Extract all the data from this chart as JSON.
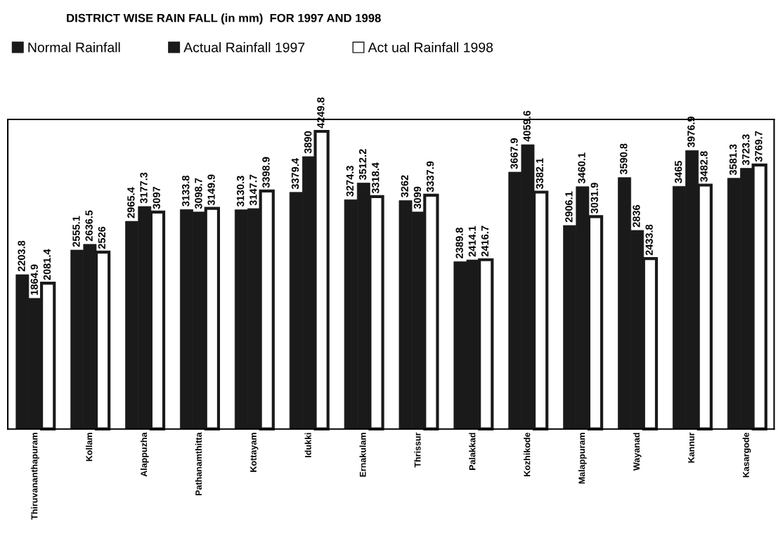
{
  "chart_data": {
    "type": "bar",
    "title": "DISTRICT WISE RAIN FALL (in mm)  FOR 1997 AND 1998",
    "categories": [
      "Thiruvananthapuram",
      "Kollam",
      "Alappuzha",
      "Pathanamthitta",
      "Kottayam",
      "Idukki",
      "Ernakulam",
      "Thrissur",
      "Palakkad",
      "Kozhikode",
      "Malappuram",
      "Wayanad",
      "Kannur",
      "Kasargode"
    ],
    "series": [
      {
        "name": "Normal Rainfall",
        "color": "#1a1a1a",
        "values": [
          2203.8,
          2555.1,
          2965.4,
          3133.8,
          3130.3,
          3379.4,
          3274.3,
          3262,
          2389.8,
          3667.9,
          2906.1,
          3590.8,
          3465,
          3581.3
        ]
      },
      {
        "name": "Actual Rainfall 1997",
        "color": "#1a1a1a",
        "values": [
          1864.9,
          2636.5,
          3177.3,
          3098.7,
          3147.7,
          3890,
          3512.2,
          3099,
          2414.1,
          4059.6,
          3460.1,
          2836,
          3976.9,
          3723.3
        ]
      },
      {
        "name": "Act ual Rainfall 1998",
        "color": "#ffffff",
        "values": [
          2081.4,
          2526,
          3097,
          3149.9,
          3398.9,
          4249.8,
          3318.4,
          3337.9,
          2416.7,
          3382.1,
          3031.9,
          2433.8,
          3482.8,
          3769.7
        ]
      }
    ],
    "data_labels": true,
    "legend": "top left",
    "grid": false
  }
}
